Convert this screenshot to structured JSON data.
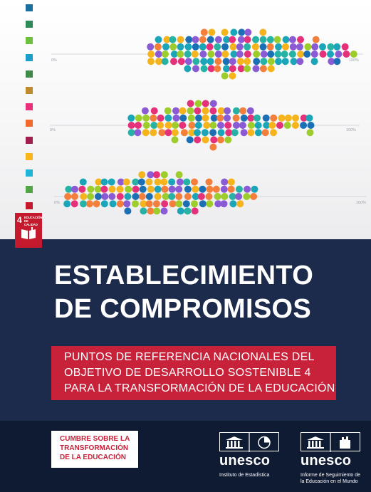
{
  "sidebar": {
    "square_colors": [
      "#1a6f9c",
      "#2e8b57",
      "#6cbf3f",
      "#1b9ec9",
      "#3d8b46",
      "#bf8b2e",
      "#e9307a",
      "#f2692c",
      "#a11f4f",
      "#f8b51c",
      "#1fb3d6",
      "#52a447",
      "#c5192d",
      "#1e6aa9",
      "#d99e2c",
      "#e5243b"
    ]
  },
  "plots": {
    "rows": [
      {
        "label_start": "0%",
        "label_end": "100%"
      },
      {
        "label_start": "0%",
        "label_end": "100%"
      },
      {
        "label_start": "0%",
        "label_end": "100%"
      }
    ],
    "dot_palette": [
      "#f6b41c",
      "#1ba5b8",
      "#e5307a",
      "#8b5bd6",
      "#9ccd2a",
      "#1b6fb5",
      "#f47f3b",
      "#26b3a5"
    ]
  },
  "sdg_badge": {
    "number": "4",
    "label": "EDUCACIÓN DE CALIDAD",
    "color": "#c5192d"
  },
  "title_lines": [
    "ESTABLECIMIENTO",
    "DE COMPROMISOS"
  ],
  "subtitle_lines": [
    "PUNTOS DE REFERENCIA NACIONALES DEL",
    "OBJETIVO DE DESARROLLO SOSTENIBLE 4",
    "PARA LA TRANSFORMACIÓN DE LA EDUCACIÓN"
  ],
  "summit_lines": [
    "CUMBRE SOBRE LA",
    "TRANSFORMACIÓN",
    "DE LA EDUCACIÓN"
  ],
  "logos": [
    {
      "word": "unesco",
      "sub_lines": [
        "Instituto de Estadística"
      ]
    },
    {
      "word": "unesco",
      "sub_lines": [
        "Informe de Seguimiento de",
        "la Educación en el Mundo"
      ]
    }
  ],
  "colors": {
    "navy": "#1c2a4c",
    "footer_navy": "#0f1a33",
    "accent_red": "#c8213a"
  }
}
